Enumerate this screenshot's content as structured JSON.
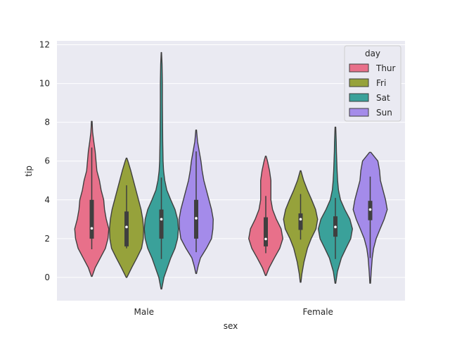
{
  "chart_data": {
    "type": "violin",
    "xlabel": "sex",
    "ylabel": "tip",
    "categories": [
      "Male",
      "Female"
    ],
    "ylim": [
      -1.2,
      12.2
    ],
    "yticks": [
      0,
      2,
      4,
      6,
      8,
      10,
      12
    ],
    "grid": true,
    "legend": {
      "title": "day",
      "placement": "top-right"
    },
    "series": [
      {
        "name": "Thur",
        "color": "#E8708A",
        "violins": [
          {
            "category": "Male",
            "min": 0.05,
            "max": 8.05,
            "q1": 2.0,
            "median": 2.53,
            "q3": 4.0,
            "whisker_low": 1.45,
            "whisker_high": 6.7,
            "profile": [
              [
                0.05,
                0.02
              ],
              [
                0.5,
                0.2
              ],
              [
                1.0,
                0.5
              ],
              [
                1.5,
                0.8
              ],
              [
                2.0,
                0.95
              ],
              [
                2.5,
                1.0
              ],
              [
                3.0,
                0.85
              ],
              [
                3.5,
                0.75
              ],
              [
                4.0,
                0.7
              ],
              [
                4.5,
                0.55
              ],
              [
                5.0,
                0.45
              ],
              [
                5.5,
                0.3
              ],
              [
                6.0,
                0.25
              ],
              [
                6.5,
                0.2
              ],
              [
                7.0,
                0.12
              ],
              [
                7.5,
                0.05
              ],
              [
                8.05,
                0.02
              ]
            ]
          },
          {
            "category": "Female",
            "min": 0.1,
            "max": 6.25,
            "q1": 1.6,
            "median": 1.98,
            "q3": 3.1,
            "whisker_low": 1.25,
            "whisker_high": 4.2,
            "profile": [
              [
                0.1,
                0.02
              ],
              [
                0.5,
                0.2
              ],
              [
                1.0,
                0.5
              ],
              [
                1.5,
                0.82
              ],
              [
                2.0,
                1.0
              ],
              [
                2.5,
                0.9
              ],
              [
                3.0,
                0.62
              ],
              [
                3.5,
                0.4
              ],
              [
                4.0,
                0.3
              ],
              [
                4.5,
                0.3
              ],
              [
                5.0,
                0.3
              ],
              [
                5.5,
                0.22
              ],
              [
                6.0,
                0.1
              ],
              [
                6.25,
                0.02
              ]
            ]
          }
        ]
      },
      {
        "name": "Fri",
        "color": "#96A23B",
        "violins": [
          {
            "category": "Male",
            "min": 0.0,
            "max": 6.15,
            "q1": 1.6,
            "median": 2.6,
            "q3": 3.4,
            "whisker_low": 1.5,
            "whisker_high": 4.75,
            "profile": [
              [
                0.0,
                0.02
              ],
              [
                0.5,
                0.3
              ],
              [
                1.0,
                0.6
              ],
              [
                1.5,
                0.88
              ],
              [
                2.0,
                0.98
              ],
              [
                2.5,
                1.0
              ],
              [
                3.0,
                0.95
              ],
              [
                3.5,
                0.85
              ],
              [
                4.0,
                0.7
              ],
              [
                4.5,
                0.55
              ],
              [
                5.0,
                0.4
              ],
              [
                5.5,
                0.25
              ],
              [
                6.0,
                0.08
              ],
              [
                6.15,
                0.02
              ]
            ]
          },
          {
            "category": "Female",
            "min": -0.25,
            "max": 5.5,
            "q1": 2.45,
            "median": 3.0,
            "q3": 3.3,
            "whisker_low": 1.95,
            "whisker_high": 4.3,
            "profile": [
              [
                -0.25,
                0.02
              ],
              [
                0.2,
                0.08
              ],
              [
                0.8,
                0.2
              ],
              [
                1.5,
                0.4
              ],
              [
                2.0,
                0.62
              ],
              [
                2.5,
                0.9
              ],
              [
                3.0,
                1.0
              ],
              [
                3.5,
                0.88
              ],
              [
                4.0,
                0.65
              ],
              [
                4.5,
                0.4
              ],
              [
                5.0,
                0.18
              ],
              [
                5.5,
                0.02
              ]
            ]
          }
        ]
      },
      {
        "name": "Sat",
        "color": "#3AA19A",
        "violins": [
          {
            "category": "Male",
            "min": -0.6,
            "max": 11.6,
            "q1": 2.0,
            "median": 3.0,
            "q3": 3.5,
            "whisker_low": 0.95,
            "whisker_high": 5.15,
            "profile": [
              [
                -0.6,
                0.02
              ],
              [
                0.0,
                0.15
              ],
              [
                0.5,
                0.35
              ],
              [
                1.0,
                0.55
              ],
              [
                1.5,
                0.8
              ],
              [
                2.0,
                0.95
              ],
              [
                2.5,
                1.0
              ],
              [
                3.0,
                0.95
              ],
              [
                3.5,
                0.8
              ],
              [
                4.0,
                0.55
              ],
              [
                4.5,
                0.32
              ],
              [
                5.0,
                0.2
              ],
              [
                5.5,
                0.13
              ],
              [
                6.0,
                0.1
              ],
              [
                7.0,
                0.08
              ],
              [
                8.0,
                0.07
              ],
              [
                9.0,
                0.06
              ],
              [
                10.0,
                0.06
              ],
              [
                11.0,
                0.04
              ],
              [
                11.6,
                0.01
              ]
            ]
          },
          {
            "category": "Female",
            "min": -0.3,
            "max": 7.75,
            "q1": 2.1,
            "median": 2.6,
            "q3": 3.15,
            "whisker_low": 0.95,
            "whisker_high": 4.1,
            "profile": [
              [
                -0.3,
                0.02
              ],
              [
                0.3,
                0.12
              ],
              [
                1.0,
                0.35
              ],
              [
                1.5,
                0.62
              ],
              [
                2.0,
                0.9
              ],
              [
                2.5,
                1.0
              ],
              [
                3.0,
                0.85
              ],
              [
                3.5,
                0.55
              ],
              [
                4.0,
                0.3
              ],
              [
                4.5,
                0.18
              ],
              [
                5.0,
                0.13
              ],
              [
                5.5,
                0.1
              ],
              [
                6.0,
                0.08
              ],
              [
                6.5,
                0.06
              ],
              [
                7.0,
                0.05
              ],
              [
                7.75,
                0.02
              ]
            ]
          }
        ]
      },
      {
        "name": "Sun",
        "color": "#A48BEA",
        "violins": [
          {
            "category": "Male",
            "min": 0.2,
            "max": 7.6,
            "q1": 2.0,
            "median": 3.05,
            "q3": 4.0,
            "whisker_low": 1.3,
            "whisker_high": 6.5,
            "profile": [
              [
                0.2,
                0.02
              ],
              [
                0.6,
                0.12
              ],
              [
                1.0,
                0.25
              ],
              [
                1.5,
                0.6
              ],
              [
                2.0,
                0.9
              ],
              [
                2.5,
                0.98
              ],
              [
                3.0,
                1.0
              ],
              [
                3.5,
                0.9
              ],
              [
                4.0,
                0.75
              ],
              [
                4.5,
                0.6
              ],
              [
                5.0,
                0.45
              ],
              [
                5.5,
                0.35
              ],
              [
                6.0,
                0.28
              ],
              [
                6.5,
                0.18
              ],
              [
                7.0,
                0.08
              ],
              [
                7.6,
                0.02
              ]
            ]
          },
          {
            "category": "Female",
            "min": -0.3,
            "max": 6.45,
            "q1": 2.95,
            "median": 3.5,
            "q3": 3.95,
            "whisker_low": 1.0,
            "whisker_high": 5.2,
            "profile": [
              [
                -0.3,
                0.02
              ],
              [
                0.3,
                0.06
              ],
              [
                1.0,
                0.12
              ],
              [
                1.5,
                0.2
              ],
              [
                2.0,
                0.35
              ],
              [
                2.5,
                0.58
              ],
              [
                3.0,
                0.82
              ],
              [
                3.5,
                1.0
              ],
              [
                4.0,
                0.9
              ],
              [
                4.5,
                0.75
              ],
              [
                5.0,
                0.6
              ],
              [
                5.5,
                0.55
              ],
              [
                6.0,
                0.45
              ],
              [
                6.45,
                0.04
              ]
            ]
          }
        ]
      }
    ]
  }
}
